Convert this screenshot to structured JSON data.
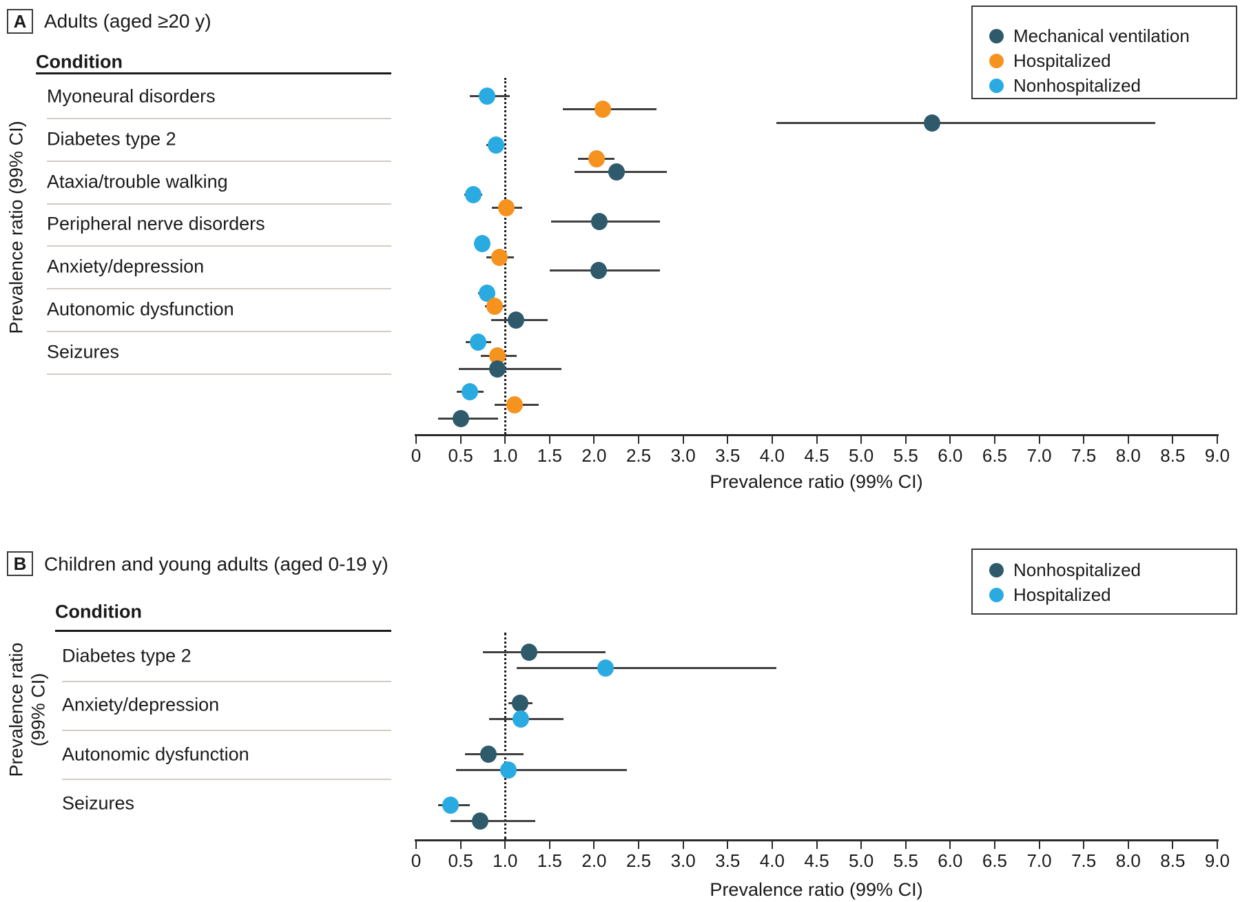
{
  "panel_a": {
    "tag": "A",
    "title": "Adults (aged ≥20 y)",
    "condition_header": "Condition",
    "y_axis_label": "Prevalence ratio (99% CI)",
    "legend": [
      {
        "label": "Mechanical ventilation",
        "color": "#2E5A6C"
      },
      {
        "label": "Hospitalized",
        "color": "#F6921E"
      },
      {
        "label": "Nonhospitalized",
        "color": "#29ABE2"
      }
    ]
  },
  "panel_b": {
    "tag": "B",
    "title": "Children and young adults (aged 0-19 y)",
    "condition_header": "Condition",
    "y_axis_label_line1": "Prevalence ratio",
    "y_axis_label_line2": "(99% CI)",
    "legend": [
      {
        "label": "Nonhospitalized",
        "color": "#2E5A6C"
      },
      {
        "label": "Hospitalized",
        "color": "#29ABE2"
      }
    ]
  },
  "x_axis": {
    "label": "Prevalence ratio (99% CI)",
    "min": 0,
    "max": 9,
    "tick_step": 0.5,
    "tick_labels": [
      "0",
      "0.5",
      "1.0",
      "1.5",
      "2.0",
      "2.5",
      "3.0",
      "3.5",
      "4.0",
      "4.5",
      "5.0",
      "5.5",
      "6.0",
      "6.5",
      "7.0",
      "7.5",
      "8.0",
      "8.5",
      "9.0"
    ]
  },
  "chart_data": [
    {
      "type": "scatter",
      "subtype": "forest-plot",
      "panel": "A",
      "title": "Adults (aged ≥20 y)",
      "xlabel": "Prevalence ratio (99% CI)",
      "ylabel": "Prevalence ratio (99% CI)",
      "xlim": [
        0,
        9
      ],
      "reference_line": 1.0,
      "grid": false,
      "legend_position": "top-right",
      "series_colors": {
        "Mechanical ventilation": "#2E5A6C",
        "Hospitalized": "#F6921E",
        "Nonhospitalized": "#29ABE2"
      },
      "categories": [
        "Myoneural disorders",
        "Diabetes type 2",
        "Ataxia/trouble walking",
        "Peripheral nerve disorders",
        "Anxiety/depression",
        "Autonomic dysfunction",
        "Seizures"
      ],
      "rows": [
        {
          "condition": "Myoneural disorders",
          "points": [
            {
              "series": "Nonhospitalized",
              "value": 0.8,
              "ci_low": 0.6,
              "ci_high": 1.05
            },
            {
              "series": "Hospitalized",
              "value": 2.1,
              "ci_low": 1.65,
              "ci_high": 2.7
            },
            {
              "series": "Mechanical ventilation",
              "value": 5.8,
              "ci_low": 4.05,
              "ci_high": 8.3
            }
          ]
        },
        {
          "condition": "Diabetes type 2",
          "points": [
            {
              "series": "Nonhospitalized",
              "value": 0.9,
              "ci_low": 0.79,
              "ci_high": 1.0
            },
            {
              "series": "Hospitalized",
              "value": 2.03,
              "ci_low": 1.82,
              "ci_high": 2.23
            },
            {
              "series": "Mechanical ventilation",
              "value": 2.25,
              "ci_low": 1.78,
              "ci_high": 2.82
            }
          ]
        },
        {
          "condition": "Ataxia/trouble walking",
          "points": [
            {
              "series": "Nonhospitalized",
              "value": 0.64,
              "ci_low": 0.54,
              "ci_high": 0.74
            },
            {
              "series": "Hospitalized",
              "value": 1.01,
              "ci_low": 0.85,
              "ci_high": 1.19
            },
            {
              "series": "Mechanical ventilation",
              "value": 2.06,
              "ci_low": 1.52,
              "ci_high": 2.74
            }
          ]
        },
        {
          "condition": "Peripheral nerve disorders",
          "points": [
            {
              "series": "Nonhospitalized",
              "value": 0.74,
              "ci_low": 0.65,
              "ci_high": 0.83
            },
            {
              "series": "Hospitalized",
              "value": 0.94,
              "ci_low": 0.79,
              "ci_high": 1.1
            },
            {
              "series": "Mechanical ventilation",
              "value": 2.05,
              "ci_low": 1.5,
              "ci_high": 2.74
            }
          ]
        },
        {
          "condition": "Anxiety/depression",
          "points": [
            {
              "series": "Nonhospitalized",
              "value": 0.8,
              "ci_low": 0.7,
              "ci_high": 0.88
            },
            {
              "series": "Hospitalized",
              "value": 0.88,
              "ci_low": 0.77,
              "ci_high": 1.0
            },
            {
              "series": "Mechanical ventilation",
              "value": 1.12,
              "ci_low": 0.84,
              "ci_high": 1.48
            }
          ]
        },
        {
          "condition": "Autonomic dysfunction",
          "points": [
            {
              "series": "Nonhospitalized",
              "value": 0.7,
              "ci_low": 0.56,
              "ci_high": 0.84
            },
            {
              "series": "Hospitalized",
              "value": 0.91,
              "ci_low": 0.73,
              "ci_high": 1.13
            },
            {
              "series": "Mechanical ventilation",
              "value": 0.91,
              "ci_low": 0.48,
              "ci_high": 1.63
            }
          ]
        },
        {
          "condition": "Seizures",
          "points": [
            {
              "series": "Nonhospitalized",
              "value": 0.6,
              "ci_low": 0.46,
              "ci_high": 0.76
            },
            {
              "series": "Hospitalized",
              "value": 1.11,
              "ci_low": 0.88,
              "ci_high": 1.38
            },
            {
              "series": "Mechanical ventilation",
              "value": 0.5,
              "ci_low": 0.25,
              "ci_high": 0.92
            }
          ]
        }
      ]
    },
    {
      "type": "scatter",
      "subtype": "forest-plot",
      "panel": "B",
      "title": "Children and young adults (aged 0-19 y)",
      "xlabel": "Prevalence ratio (99% CI)",
      "ylabel": "Prevalence ratio (99% CI)",
      "xlim": [
        0,
        9
      ],
      "reference_line": 1.0,
      "grid": false,
      "legend_position": "top-right",
      "series_colors": {
        "Nonhospitalized": "#2E5A6C",
        "Hospitalized": "#29ABE2"
      },
      "categories": [
        "Diabetes type 2",
        "Anxiety/depression",
        "Autonomic dysfunction",
        "Seizures"
      ],
      "rows": [
        {
          "condition": "Diabetes type 2",
          "points": [
            {
              "series": "Nonhospitalized",
              "value": 1.27,
              "ci_low": 0.75,
              "ci_high": 2.13
            },
            {
              "series": "Hospitalized",
              "value": 2.13,
              "ci_low": 1.13,
              "ci_high": 4.05
            }
          ]
        },
        {
          "condition": "Anxiety/depression",
          "points": [
            {
              "series": "Nonhospitalized",
              "value": 1.17,
              "ci_low": 1.04,
              "ci_high": 1.31
            },
            {
              "series": "Hospitalized",
              "value": 1.18,
              "ci_low": 0.82,
              "ci_high": 1.66
            }
          ]
        },
        {
          "condition": "Autonomic dysfunction",
          "points": [
            {
              "series": "Nonhospitalized",
              "value": 0.81,
              "ci_low": 0.55,
              "ci_high": 1.21
            },
            {
              "series": "Hospitalized",
              "value": 1.04,
              "ci_low": 0.45,
              "ci_high": 2.37
            }
          ]
        },
        {
          "condition": "Seizures",
          "points": [
            {
              "series": "Hospitalized",
              "value": 0.39,
              "ci_low": 0.25,
              "ci_high": 0.6
            },
            {
              "series": "Nonhospitalized",
              "value": 0.72,
              "ci_low": 0.39,
              "ci_high": 1.34
            }
          ]
        }
      ]
    }
  ]
}
